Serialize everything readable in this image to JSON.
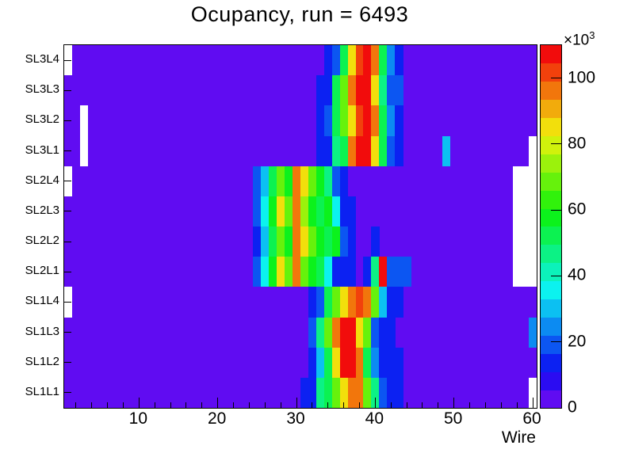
{
  "title": "Ocupancy, run = 6493",
  "x_axis": {
    "label": "Wire",
    "major_ticks": [
      10,
      20,
      30,
      40,
      50,
      60
    ],
    "minor_tick_step": 2,
    "min": 0.5,
    "max": 60.5
  },
  "colorbar": {
    "multiplier": "×10",
    "multiplier_exp": "3",
    "tick_values": [
      0,
      20,
      40,
      60,
      80,
      100
    ],
    "value_max": 110,
    "palette_colors": [
      "#600cf2",
      "#2b0cf2",
      "#0c21f2",
      "#0c56f2",
      "#0c8bf2",
      "#0cc0f2",
      "#0cf2ef",
      "#0cf2ba",
      "#0cf285",
      "#0cf251",
      "#0cf21c",
      "#31f20c",
      "#66f20c",
      "#9bf20c",
      "#d0f20c",
      "#f2df0c",
      "#f2ab0c",
      "#f2760c",
      "#f2410c",
      "#f20c0c"
    ]
  },
  "chart_data": {
    "type": "heatmap",
    "title": "Ocupancy, run = 6493",
    "xlabel": "Wire",
    "value_unit": "counts ×10³",
    "wires_min": 1,
    "wires_max": 60,
    "value_max": 110,
    "background_value": 3,
    "empty_bins_are_white": true,
    "rows_top_to_bottom": [
      {
        "label": "SL3L4",
        "empty_wires": [
          1
        ],
        "cells": {
          "34": 12,
          "35": 19,
          "36": 52,
          "37": 85,
          "38": 102,
          "39": 107,
          "40": 96,
          "41": 52,
          "42": 26,
          "43": 12
        }
      },
      {
        "label": "SL3L3",
        "empty_wires": [],
        "cells": {
          "33": 12,
          "34": 14,
          "35": 52,
          "36": 68,
          "37": 96,
          "38": 107,
          "39": 107,
          "40": 85,
          "41": 44,
          "42": 19,
          "43": 17
        }
      },
      {
        "label": "SL3L2",
        "empty_wires": [
          3
        ],
        "cells": {
          "33": 12,
          "34": 19,
          "35": 52,
          "36": 68,
          "37": 85,
          "38": 102,
          "39": 107,
          "40": 96,
          "41": 52,
          "42": 26,
          "43": 12
        }
      },
      {
        "label": "SL3L1",
        "empty_wires": [
          3,
          60
        ],
        "cells": {
          "33": 12,
          "34": 14,
          "35": 44,
          "36": 52,
          "37": 96,
          "38": 107,
          "39": 107,
          "40": 85,
          "41": 52,
          "42": 19,
          "43": 12,
          "49": 31
        }
      },
      {
        "label": "SL2L4",
        "empty_wires": [
          1,
          58,
          59,
          60
        ],
        "cells": {
          "25": 19,
          "26": 28,
          "27": 52,
          "28": 68,
          "29": 58,
          "30": 96,
          "31": 85,
          "32": 68,
          "33": 58,
          "34": 44,
          "35": 19,
          "36": 12
        }
      },
      {
        "label": "SL2L3",
        "empty_wires": [
          58,
          59,
          60
        ],
        "cells": {
          "25": 19,
          "26": 35,
          "27": 58,
          "28": 85,
          "29": 68,
          "30": 96,
          "31": 74,
          "32": 58,
          "33": 52,
          "34": 58,
          "35": 35,
          "36": 14,
          "37": 12
        }
      },
      {
        "label": "SL2L2",
        "empty_wires": [
          58,
          59,
          60
        ],
        "cells": {
          "25": 14,
          "26": 28,
          "27": 52,
          "28": 68,
          "29": 58,
          "30": 96,
          "31": 85,
          "32": 68,
          "33": 58,
          "34": 52,
          "35": 58,
          "36": 19,
          "37": 12,
          "40": 12
        }
      },
      {
        "label": "SL2L1",
        "empty_wires": [
          58,
          59,
          60
        ],
        "cells": {
          "25": 19,
          "26": 35,
          "27": 58,
          "28": 85,
          "29": 68,
          "30": 96,
          "31": 68,
          "32": 58,
          "33": 52,
          "34": 35,
          "35": 12,
          "36": 14,
          "37": 12,
          "39": 12,
          "40": 44,
          "41": 107,
          "42": 19,
          "43": 19,
          "44": 19
        }
      },
      {
        "label": "SL1L4",
        "empty_wires": [
          1
        ],
        "cells": {
          "32": 12,
          "33": 19,
          "34": 52,
          "35": 68,
          "36": 85,
          "37": 96,
          "38": 102,
          "39": 96,
          "40": 68,
          "41": 28,
          "42": 14,
          "43": 12
        }
      },
      {
        "label": "SL1L3",
        "empty_wires": [],
        "cells": {
          "32": 19,
          "33": 44,
          "34": 68,
          "35": 96,
          "36": 107,
          "37": 107,
          "38": 85,
          "39": 68,
          "40": 19,
          "41": 14,
          "42": 12,
          "60": 26
        }
      },
      {
        "label": "SL1L2",
        "empty_wires": [],
        "cells": {
          "32": 12,
          "33": 28,
          "34": 52,
          "35": 85,
          "36": 107,
          "37": 107,
          "38": 96,
          "39": 52,
          "40": 26,
          "41": 14,
          "42": 12,
          "43": 12
        }
      },
      {
        "label": "SL1L1",
        "empty_wires": [
          60
        ],
        "cells": {
          "31": 12,
          "32": 14,
          "33": 44,
          "34": 52,
          "35": 68,
          "36": 85,
          "37": 96,
          "38": 96,
          "39": 68,
          "40": 44,
          "41": 19,
          "42": 14,
          "43": 12
        }
      }
    ]
  }
}
